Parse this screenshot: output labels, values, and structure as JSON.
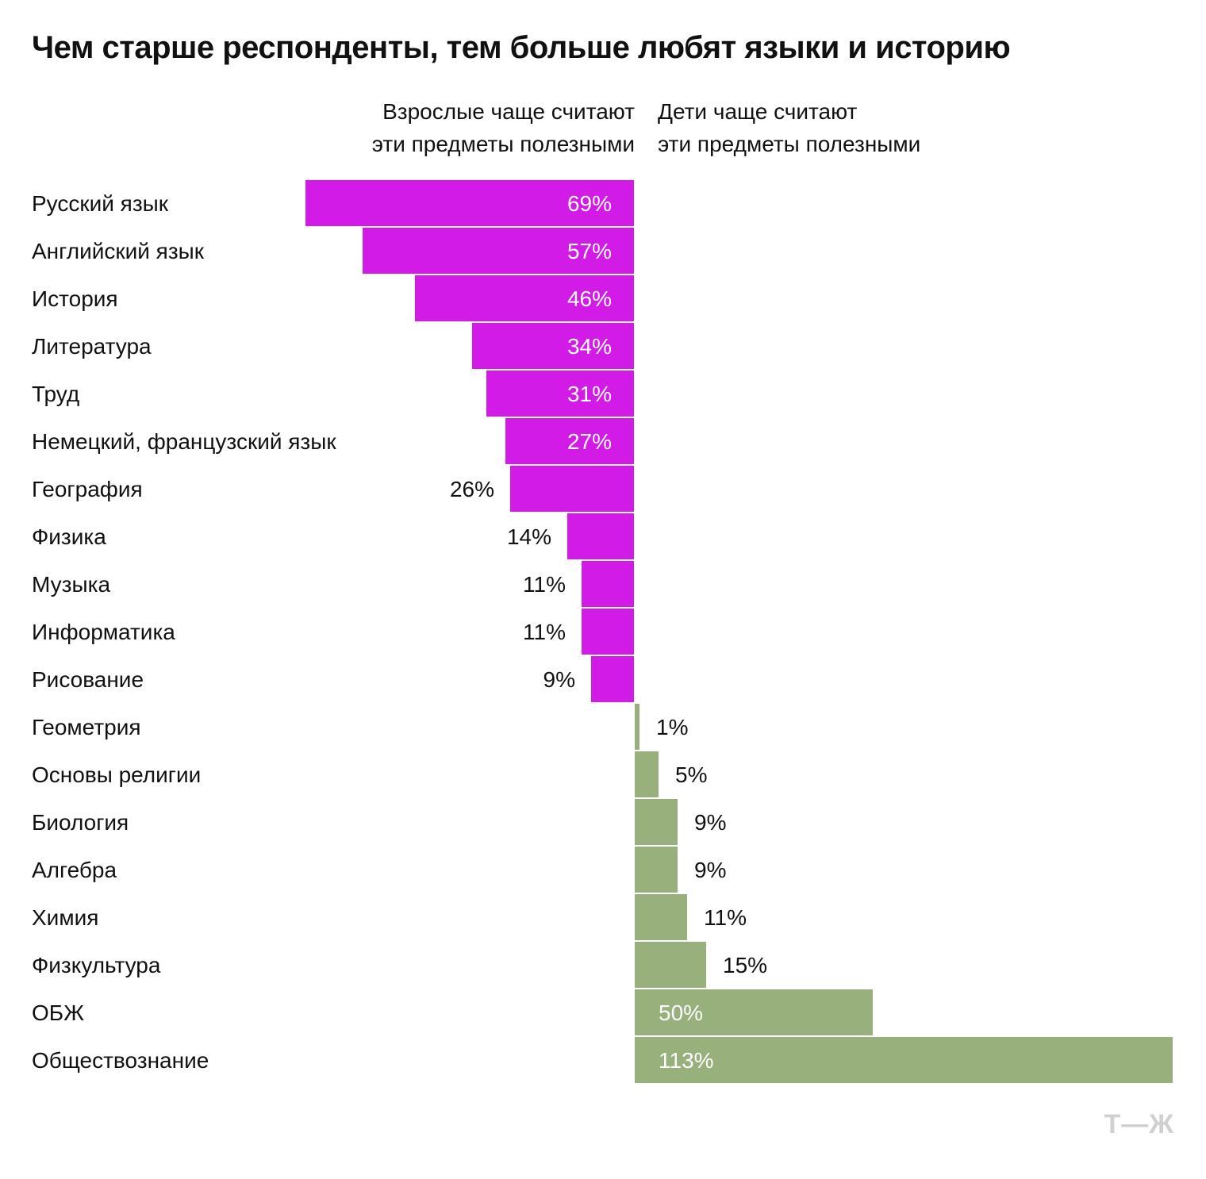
{
  "colors": {
    "adults": "#d21be6",
    "children": "#97b07c",
    "logo": "#d0d0d0"
  },
  "logo": {
    "text": "Т—Ж",
    "icon": "tzh-logo"
  },
  "chart_data": {
    "type": "bar",
    "orientation": "horizontal-diverging",
    "title": "Чем старше респонденты, тем больше любят языки и историю",
    "legend": {
      "adults": "Взрослые чаще считают\nэти предметы полезными",
      "children": "Дети чаще считают\nэти предметы полезными"
    },
    "categories": [
      "Русский язык",
      "Английский язык",
      "История",
      "Литература",
      "Труд",
      "Немецкий, французский язык",
      "География",
      "Физика",
      "Музыка",
      "Информатика",
      "Рисование",
      "Геометрия",
      "Основы религии",
      "Биология",
      "Алгебра",
      "Химия",
      "Физкультура",
      "ОБЖ",
      "Обществознание"
    ],
    "series": [
      {
        "name": "Взрослые чаще считают эти предметы полезными",
        "side": "left",
        "values": [
          69,
          57,
          46,
          34,
          31,
          27,
          26,
          14,
          11,
          11,
          9,
          null,
          null,
          null,
          null,
          null,
          null,
          null,
          null
        ]
      },
      {
        "name": "Дети чаще считают эти предметы полезными",
        "side": "right",
        "values": [
          null,
          null,
          null,
          null,
          null,
          null,
          null,
          null,
          null,
          null,
          null,
          1,
          5,
          9,
          9,
          11,
          15,
          50,
          113
        ]
      }
    ],
    "data_labels": [
      "69%",
      "57%",
      "46%",
      "34%",
      "31%",
      "27%",
      "26%",
      "14%",
      "11%",
      "11%",
      "9%",
      "1%",
      "5%",
      "9%",
      "9%",
      "11%",
      "15%",
      "50%",
      "113%"
    ],
    "unit": "%",
    "grid": false
  }
}
